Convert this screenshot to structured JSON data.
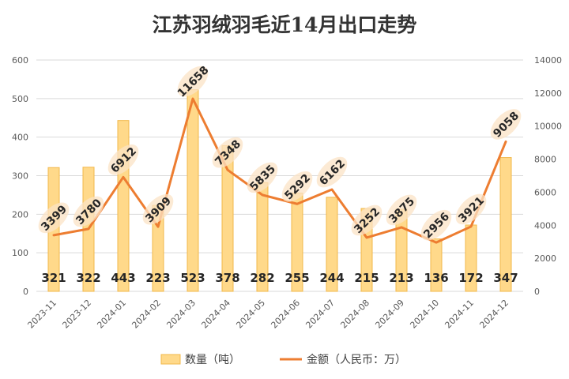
{
  "title": "江苏羽绒羽毛近14月出口走势",
  "colors": {
    "bar_fill": "#FFD98A",
    "bar_stroke": "#F2B84B",
    "line": "#ED7D31",
    "grid": "#D9D9D9",
    "label_halo": "#FBE3C6"
  },
  "chart_data": {
    "type": "bar+line",
    "categories": [
      "2023-11",
      "2023-12",
      "2024-01",
      "2024-02",
      "2024-03",
      "2024-04",
      "2024-05",
      "2024-06",
      "2024-07",
      "2024-08",
      "2024-09",
      "2024-10",
      "2024-11",
      "2024-12"
    ],
    "series": [
      {
        "name": "数量（吨）",
        "type": "bar",
        "axis": "left",
        "values": [
          321,
          322,
          443,
          223,
          523,
          378,
          282,
          255,
          244,
          215,
          213,
          136,
          172,
          347
        ]
      },
      {
        "name": "金额（人民币：万）",
        "type": "line",
        "axis": "right",
        "values": [
          3399,
          3780,
          6912,
          3909,
          11658,
          7348,
          5835,
          5292,
          6162,
          3252,
          3875,
          2956,
          3921,
          9058
        ]
      }
    ],
    "y_left": {
      "min": 0,
      "max": 600,
      "ticks": [
        0,
        100,
        200,
        300,
        400,
        500,
        600
      ]
    },
    "y_right": {
      "min": 0,
      "max": 14000,
      "ticks": [
        0,
        2000,
        4000,
        6000,
        8000,
        10000,
        12000,
        14000
      ]
    },
    "grid": true,
    "legend_position": "bottom"
  }
}
